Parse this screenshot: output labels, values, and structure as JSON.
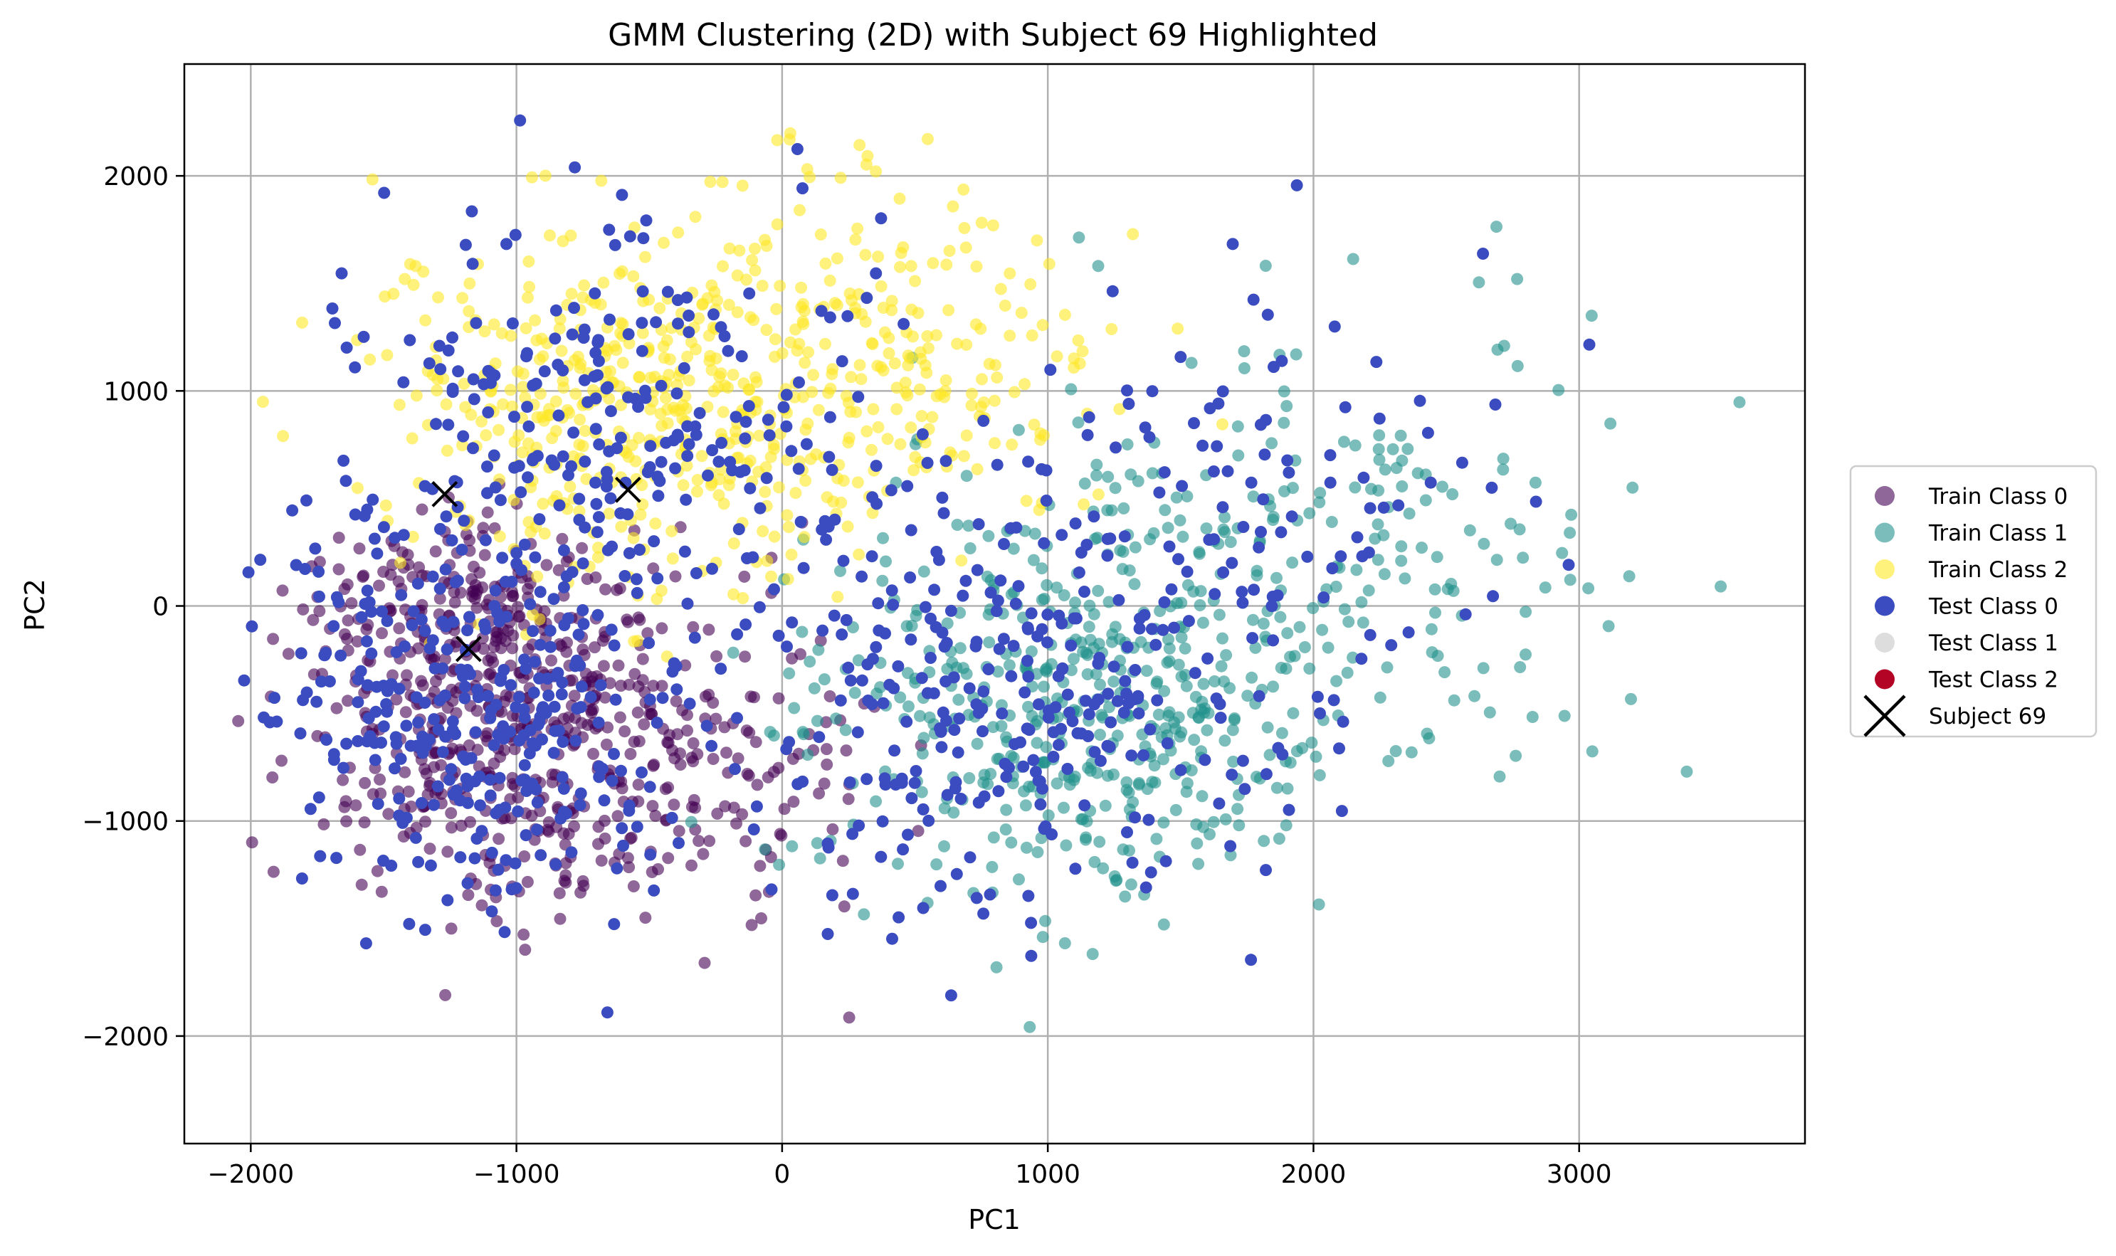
{
  "chart_data": {
    "type": "scatter",
    "title": "GMM Clustering (2D) with Subject 69 Highlighted",
    "xlabel": "PC1",
    "ylabel": "PC2",
    "xlim": [
      -2250,
      3850
    ],
    "ylim": [
      -2500,
      2520
    ],
    "xticks": [
      -2000,
      -1000,
      0,
      1000,
      2000,
      3000
    ],
    "yticks": [
      -2000,
      -1000,
      0,
      1000,
      2000
    ],
    "xtick_labels": [
      "−2000",
      "−1000",
      "0",
      "1000",
      "2000",
      "3000"
    ],
    "ytick_labels": [
      "−2000",
      "−1000",
      "0",
      "1000",
      "2000"
    ],
    "grid": true,
    "legend_position": "outside-right",
    "legend": [
      {
        "label": "Train Class 0",
        "marker": "circle",
        "color": "#440154",
        "alpha": 0.6
      },
      {
        "label": "Train Class 1",
        "marker": "circle",
        "color": "#21918c",
        "alpha": 0.6
      },
      {
        "label": "Train Class 2",
        "marker": "circle",
        "color": "#fde725",
        "alpha": 0.6
      },
      {
        "label": "Test Class 0",
        "marker": "circle",
        "color": "#3b4cc0",
        "alpha": 1.0
      },
      {
        "label": "Test Class 1",
        "marker": "circle",
        "color": "#dddddd",
        "alpha": 1.0
      },
      {
        "label": "Test Class 2",
        "marker": "circle",
        "color": "#b40426",
        "alpha": 1.0
      },
      {
        "label": "Subject 69",
        "marker": "x",
        "color": "#000000",
        "alpha": 1.0
      }
    ],
    "series": [
      {
        "name": "Train Class 0",
        "color": "#440154",
        "alpha": 0.6,
        "count": 700,
        "clusters": [
          {
            "cx": -1050,
            "cy": -650,
            "sx": 380,
            "sy": 420,
            "weight": 0.55
          },
          {
            "cx": -1200,
            "cy": -50,
            "sx": 330,
            "sy": 220,
            "weight": 0.25
          },
          {
            "cx": -350,
            "cy": -750,
            "sx": 350,
            "sy": 350,
            "weight": 0.2
          }
        ]
      },
      {
        "name": "Train Class 1",
        "color": "#21918c",
        "alpha": 0.6,
        "count": 650,
        "clusters": [
          {
            "cx": 1100,
            "cy": -450,
            "sx": 480,
            "sy": 480,
            "weight": 0.7
          },
          {
            "cx": 2100,
            "cy": 200,
            "sx": 600,
            "sy": 550,
            "weight": 0.3
          }
        ]
      },
      {
        "name": "Train Class 2",
        "color": "#fde725",
        "alpha": 0.6,
        "count": 650,
        "clusters": [
          {
            "cx": -500,
            "cy": 950,
            "sx": 520,
            "sy": 420,
            "weight": 0.75
          },
          {
            "cx": 500,
            "cy": 1100,
            "sx": 350,
            "sy": 450,
            "weight": 0.25
          }
        ]
      },
      {
        "name": "Test Class 0",
        "color": "#3b4cc0",
        "alpha": 1.0,
        "count": 950,
        "clusters": [
          {
            "cx": -1100,
            "cy": -500,
            "sx": 400,
            "sy": 450,
            "weight": 0.35
          },
          {
            "cx": -600,
            "cy": 900,
            "sx": 500,
            "sy": 450,
            "weight": 0.25
          },
          {
            "cx": 700,
            "cy": -500,
            "sx": 500,
            "sy": 450,
            "weight": 0.25
          },
          {
            "cx": 1600,
            "cy": 300,
            "sx": 550,
            "sy": 600,
            "weight": 0.15
          }
        ]
      }
    ],
    "subject_points": [
      {
        "x": -1270,
        "y": 520
      },
      {
        "x": -580,
        "y": 540
      },
      {
        "x": -1180,
        "y": -200
      }
    ]
  }
}
